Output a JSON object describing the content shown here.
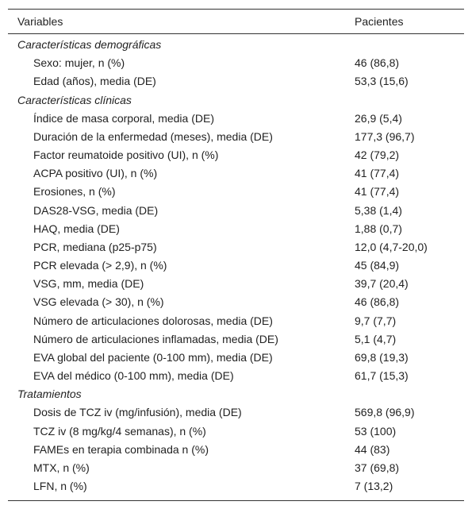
{
  "table": {
    "headers": [
      "Variables",
      "Pacientes"
    ],
    "sections": [
      {
        "title": "Características demográficas",
        "rows": [
          [
            "Sexo: mujer, n (%)",
            "46 (86,8)"
          ],
          [
            "Edad (años), media (DE)",
            "53,3 (15,6)"
          ]
        ]
      },
      {
        "title": "Características clínicas",
        "rows": [
          [
            "Índice de masa corporal, media (DE)",
            "26,9 (5,4)"
          ],
          [
            "Duración de la enfermedad (meses), media (DE)",
            "177,3 (96,7)"
          ],
          [
            "Factor reumatoide positivo (UI), n (%)",
            "42 (79,2)"
          ],
          [
            "ACPA positivo (UI), n (%)",
            "41 (77,4)"
          ],
          [
            "Erosiones, n (%)",
            "41 (77,4)"
          ],
          [
            "DAS28-VSG, media (DE)",
            "5,38 (1,4)"
          ],
          [
            "HAQ, media (DE)",
            "1,88 (0,7)"
          ],
          [
            "PCR, mediana (p25-p75)",
            "12,0 (4,7-20,0)"
          ],
          [
            "PCR elevada (> 2,9), n (%)",
            "45 (84,9)"
          ],
          [
            "VSG, mm, media (DE)",
            "39,7 (20,4)"
          ],
          [
            "VSG elevada (> 30), n (%)",
            "46 (86,8)"
          ],
          [
            "Número de articulaciones dolorosas, media (DE)",
            "9,7 (7,7)"
          ],
          [
            "Número de articulaciones inflamadas, media (DE)",
            "5,1 (4,7)"
          ],
          [
            "EVA global del paciente (0-100 mm), media (DE)",
            "69,8 (19,3)"
          ],
          [
            "EVA del médico (0-100 mm), media (DE)",
            "61,7 (15,3)"
          ]
        ]
      },
      {
        "title": "Tratamientos",
        "rows": [
          [
            "Dosis de TCZ iv (mg/infusión), media (DE)",
            "569,8 (96,9)"
          ],
          [
            "TCZ iv (8 mg/kg/4 semanas), n (%)",
            "53 (100)"
          ],
          [
            "FAMEs en terapia combinada n (%)",
            "44 (83)"
          ],
          [
            "MTX, n (%)",
            "37 (69,8)"
          ],
          [
            "LFN, n (%)",
            "7 (13,2)"
          ]
        ]
      }
    ]
  }
}
